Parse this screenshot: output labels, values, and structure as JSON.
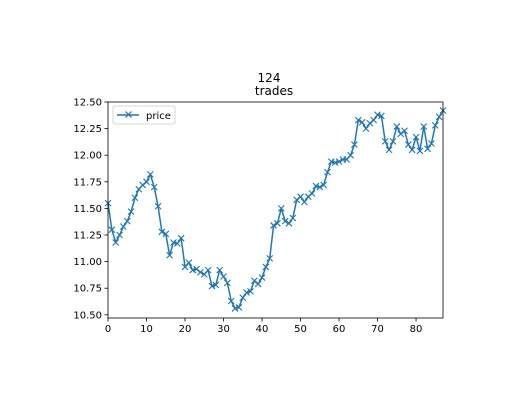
{
  "chart_data": {
    "type": "line",
    "title": "124\ntrades",
    "title_lines": [
      "124",
      "trades"
    ],
    "xlabel": "",
    "ylabel": "",
    "xlim": [
      0,
      87
    ],
    "ylim": [
      10.47,
      12.5
    ],
    "x_ticks": [
      0,
      10,
      20,
      30,
      40,
      50,
      60,
      70,
      80
    ],
    "x_tick_labels": [
      "0",
      "10",
      "20",
      "30",
      "40",
      "50",
      "60",
      "70",
      "80"
    ],
    "y_ticks": [
      10.5,
      10.75,
      11.0,
      11.25,
      11.5,
      11.75,
      12.0,
      12.25,
      12.5
    ],
    "y_tick_labels": [
      "10.50",
      "10.75",
      "11.00",
      "11.25",
      "11.50",
      "11.75",
      "12.00",
      "12.25",
      "12.50"
    ],
    "grid": false,
    "legend_position": "upper left",
    "series": [
      {
        "name": "price",
        "color": "#1f77b4",
        "marker": "x",
        "x": [
          0,
          1,
          2,
          3,
          4,
          5,
          6,
          7,
          8,
          9,
          10,
          11,
          12,
          13,
          14,
          15,
          16,
          17,
          18,
          19,
          20,
          21,
          22,
          23,
          24,
          25,
          26,
          27,
          28,
          29,
          30,
          31,
          32,
          33,
          34,
          35,
          36,
          37,
          38,
          39,
          40,
          41,
          42,
          43,
          44,
          45,
          46,
          47,
          48,
          49,
          50,
          51,
          52,
          53,
          54,
          55,
          56,
          57,
          58,
          59,
          60,
          61,
          62,
          63,
          64,
          65,
          66,
          67,
          68,
          69,
          70,
          71,
          72,
          73,
          74,
          75,
          76,
          77,
          78,
          79,
          80,
          81,
          82,
          83,
          84,
          85,
          86,
          87
        ],
        "values": [
          11.55,
          11.3,
          11.18,
          11.25,
          11.33,
          11.38,
          11.47,
          11.6,
          11.68,
          11.72,
          11.75,
          11.82,
          11.7,
          11.52,
          11.28,
          11.26,
          11.06,
          11.18,
          11.17,
          11.22,
          10.95,
          10.99,
          10.92,
          10.93,
          10.9,
          10.88,
          10.92,
          10.77,
          10.78,
          10.92,
          10.86,
          10.8,
          10.63,
          10.56,
          10.57,
          10.66,
          10.71,
          10.72,
          10.82,
          10.79,
          10.85,
          10.95,
          11.03,
          11.34,
          11.36,
          11.5,
          11.38,
          11.36,
          11.41,
          11.58,
          11.61,
          11.56,
          11.61,
          11.64,
          11.71,
          11.7,
          11.72,
          11.84,
          11.94,
          11.93,
          11.94,
          11.96,
          11.96,
          12.0,
          12.1,
          12.33,
          12.31,
          12.25,
          12.3,
          12.33,
          12.38,
          12.37,
          12.13,
          12.05,
          12.13,
          12.27,
          12.2,
          12.23,
          12.1,
          12.05,
          12.17,
          12.04,
          12.27,
          12.06,
          12.11,
          12.28,
          12.36,
          12.42
        ]
      }
    ]
  }
}
